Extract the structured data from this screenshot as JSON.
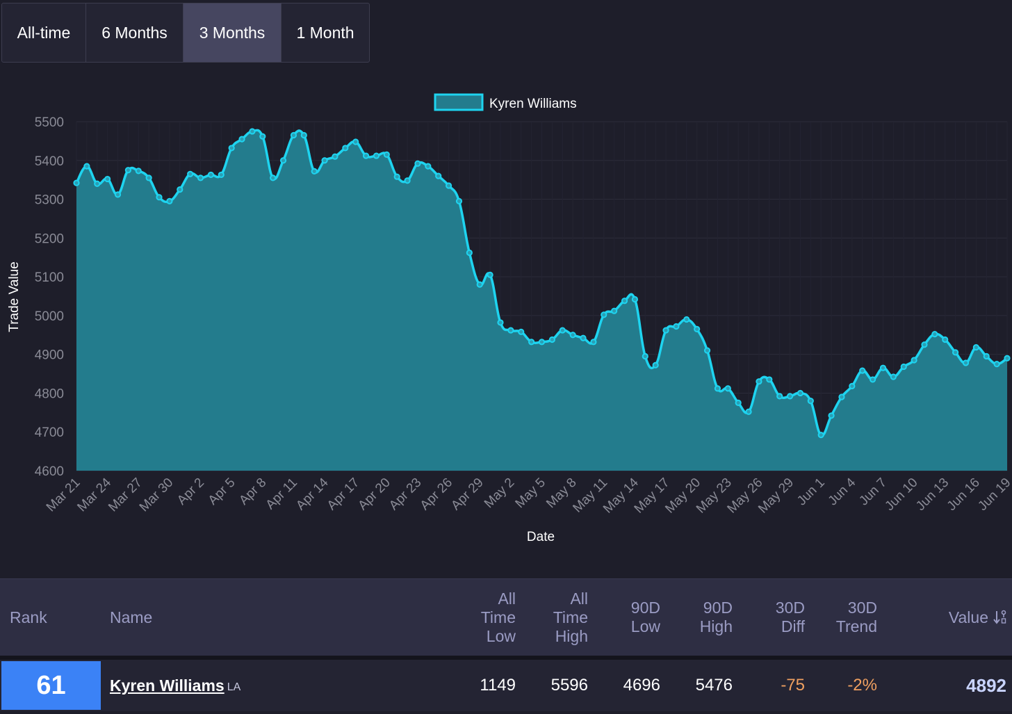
{
  "tabs": [
    {
      "label": "All-time",
      "active": false
    },
    {
      "label": "6 Months",
      "active": false
    },
    {
      "label": "3 Months",
      "active": true
    },
    {
      "label": "1 Month",
      "active": false
    }
  ],
  "colors": {
    "background": "#1e1e2a",
    "line": "#1ed4f0",
    "fill": "#237c8d",
    "active_tab": "#464660",
    "rank_box": "#3b82f6",
    "negative": "#f0a060",
    "header_text": "#9b9cc4"
  },
  "chart_data": {
    "type": "area",
    "legend": {
      "label": "Kyren Williams",
      "position": "top-center"
    },
    "xlabel": "Date",
    "ylabel": "Trade Value",
    "ylim": [
      4600,
      5500
    ],
    "yticks": [
      4600,
      4700,
      4800,
      4900,
      5000,
      5100,
      5200,
      5300,
      5400,
      5500
    ],
    "grid": true,
    "x_tick_labels": [
      "Mar 21",
      "Mar 24",
      "Mar 27",
      "Mar 30",
      "Apr 2",
      "Apr 5",
      "Apr 8",
      "Apr 11",
      "Apr 14",
      "Apr 17",
      "Apr 20",
      "Apr 23",
      "Apr 26",
      "Apr 29",
      "May 2",
      "May 5",
      "May 8",
      "May 11",
      "May 14",
      "May 17",
      "May 20",
      "May 23",
      "May 26",
      "May 29",
      "Jun 1",
      "Jun 4",
      "Jun 7",
      "Jun 10",
      "Jun 13",
      "Jun 16",
      "Jun 19"
    ],
    "series": [
      {
        "name": "Kyren Williams",
        "values": [
          5342,
          5385,
          5340,
          5352,
          5312,
          5375,
          5373,
          5355,
          5305,
          5295,
          5325,
          5365,
          5355,
          5363,
          5363,
          5432,
          5455,
          5475,
          5462,
          5355,
          5400,
          5465,
          5465,
          5372,
          5400,
          5410,
          5432,
          5448,
          5412,
          5412,
          5415,
          5358,
          5348,
          5392,
          5385,
          5360,
          5335,
          5295,
          5162,
          5080,
          5105,
          4982,
          4962,
          4958,
          4932,
          4932,
          4938,
          4962,
          4950,
          4942,
          4932,
          5002,
          5012,
          5038,
          5042,
          4895,
          4872,
          4962,
          4972,
          4990,
          4965,
          4910,
          4812,
          4812,
          4775,
          4752,
          4830,
          4835,
          4792,
          4792,
          4800,
          4780,
          4692,
          4742,
          4790,
          4818,
          4858,
          4835,
          4865,
          4842,
          4868,
          4885,
          4925,
          4952,
          4938,
          4905,
          4878,
          4918,
          4895,
          4875,
          4890
        ]
      }
    ]
  },
  "table": {
    "headers": {
      "rank": "Rank",
      "name": "Name",
      "all_time_low": "All\nTime\nLow",
      "all_time_high": "All\nTime\nHigh",
      "low_90d": "90D\nLow",
      "high_90d": "90D\nHigh",
      "diff_30d": "30D\nDiff",
      "trend_30d": "30D\nTrend",
      "value": "Value",
      "sort_icon": "sort-desc-icon"
    },
    "row": {
      "rank": "61",
      "name": "Kyren Williams",
      "team": "LA",
      "all_time_low": "1149",
      "all_time_high": "5596",
      "low_90d": "4696",
      "high_90d": "5476",
      "diff_30d": "-75",
      "trend_30d": "-2%",
      "value": "4892"
    }
  }
}
